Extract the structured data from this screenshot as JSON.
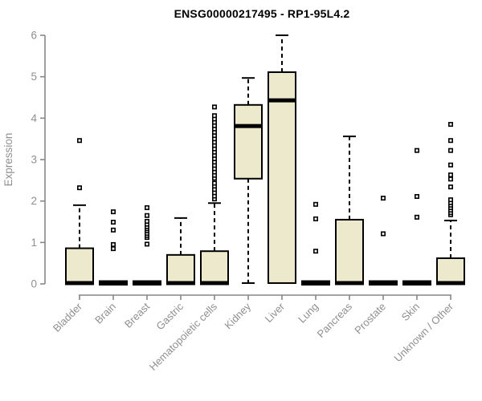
{
  "chart_data": {
    "type": "boxplot",
    "title": "ENSG00000217495 - RP1-95L4.2",
    "ylabel": "Expression",
    "ylim": [
      0,
      6
    ],
    "yticks": [
      0,
      1,
      2,
      3,
      4,
      5,
      6
    ],
    "grid": false,
    "legend": "none",
    "colors": {
      "box_fill": "#EDE9CC",
      "box_stroke": "#000000",
      "median": "#000000",
      "axis": "#878787",
      "tick_label": "#8F8F8F",
      "title": "#000000",
      "background": "#FFFFFF"
    },
    "categories": [
      "Bladder",
      "Brain",
      "Breast",
      "Gastric",
      "Hematopoietic cells",
      "Kidney",
      "Liver",
      "Lung",
      "Pancreas",
      "Prostate",
      "Skin",
      "Unknown / Other"
    ],
    "boxes": [
      {
        "label": "Bladder",
        "q1": 0,
        "median": 0.02,
        "q3": 0.86,
        "whisker_low": 0,
        "whisker_high": 1.9,
        "outliers": [
          2.32,
          3.46
        ]
      },
      {
        "label": "Brain",
        "q1": 0,
        "median": 0.01,
        "q3": 0.04,
        "whisker_low": 0,
        "whisker_high": 0.04,
        "outliers": [
          0.85,
          0.95,
          1.3,
          1.49,
          1.74
        ]
      },
      {
        "label": "Breast",
        "q1": 0,
        "median": 0.01,
        "q3": 0.04,
        "whisker_low": 0,
        "whisker_high": 0.04,
        "outliers": [
          0.96,
          1.12,
          1.17,
          1.22,
          1.28,
          1.33,
          1.38,
          1.44,
          1.51,
          1.65,
          1.84
        ]
      },
      {
        "label": "Gastric",
        "q1": 0,
        "median": 0.02,
        "q3": 0.7,
        "whisker_low": 0,
        "whisker_high": 1.59,
        "outliers": []
      },
      {
        "label": "Hematopoietic cells",
        "q1": 0,
        "median": 0.02,
        "q3": 0.79,
        "whisker_low": 0,
        "whisker_high": 1.95,
        "outliers": [
          2.05,
          2.12,
          2.2,
          2.28,
          2.36,
          2.43,
          2.55,
          2.62,
          2.7,
          2.78,
          2.86,
          2.94,
          3.02,
          3.1,
          3.18,
          3.26,
          3.34,
          3.42,
          3.5,
          3.58,
          3.66,
          3.74,
          3.82,
          3.9,
          3.98,
          4.06,
          4.27
        ]
      },
      {
        "label": "Kidney",
        "q1": 2.54,
        "median": 3.81,
        "q3": 4.32,
        "whisker_low": 0.02,
        "whisker_high": 4.97,
        "outliers": []
      },
      {
        "label": "Liver",
        "q1": 0.02,
        "median": 4.43,
        "q3": 5.11,
        "whisker_low": 0.02,
        "whisker_high": 6.0,
        "outliers": []
      },
      {
        "label": "Lung",
        "q1": 0,
        "median": 0.01,
        "q3": 0.04,
        "whisker_low": 0,
        "whisker_high": 0.04,
        "outliers": [
          0.79,
          1.57,
          1.92
        ]
      },
      {
        "label": "Pancreas",
        "q1": 0,
        "median": 0.02,
        "q3": 1.55,
        "whisker_low": 0,
        "whisker_high": 3.56,
        "outliers": []
      },
      {
        "label": "Prostate",
        "q1": 0,
        "median": 0.01,
        "q3": 0.04,
        "whisker_low": 0,
        "whisker_high": 0.04,
        "outliers": [
          1.21,
          2.07
        ]
      },
      {
        "label": "Skin",
        "q1": 0,
        "median": 0.01,
        "q3": 0.04,
        "whisker_low": 0,
        "whisker_high": 0.04,
        "outliers": [
          1.61,
          2.11,
          3.22
        ]
      },
      {
        "label": "Unknown / Other",
        "q1": 0,
        "median": 0.02,
        "q3": 0.62,
        "whisker_low": 0,
        "whisker_high": 1.53,
        "outliers": [
          1.67,
          1.72,
          1.78,
          1.84,
          1.9,
          1.96,
          2.03,
          2.34,
          2.53,
          2.63,
          2.87,
          3.22,
          3.46,
          3.85
        ]
      }
    ]
  }
}
